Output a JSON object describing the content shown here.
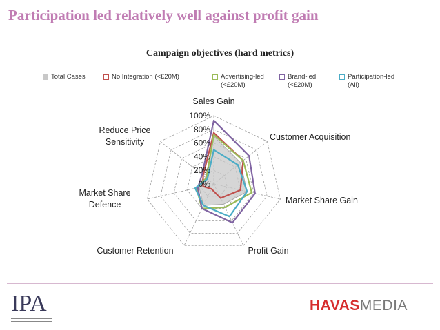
{
  "slide": {
    "title": "Participation led relatively well against  profit gain"
  },
  "chart_data": {
    "type": "radar",
    "title": "Campaign objectives (hard metrics)",
    "axes": [
      "Sales Gain",
      "Customer Acquisition",
      "Market Share Gain",
      "Profit Gain",
      "Customer Retention",
      "Market Share Defence",
      "Reduce Price Sensitivity"
    ],
    "axis_label_lines": [
      [
        "Sales Gain"
      ],
      [
        "Customer Acquisition"
      ],
      [
        "Market Share Gain"
      ],
      [
        "Profit Gain"
      ],
      [
        "Customer Retention"
      ],
      [
        "Market Share",
        "Defence"
      ],
      [
        "Reduce Price",
        "Sensitivity"
      ]
    ],
    "rlim": [
      0,
      100
    ],
    "ticks": [
      "0%",
      "20%",
      "40%",
      "60%",
      "80%",
      "100%"
    ],
    "series": [
      {
        "name": "Total Cases",
        "legend_lines": [
          "Total Cases"
        ],
        "color": "#c8c8c8",
        "fill": true,
        "values": [
          70,
          50,
          50,
          33,
          35,
          22,
          15
        ]
      },
      {
        "name": "No Integration (<£20M)",
        "legend_lines": [
          "No Integration (<£20M)"
        ],
        "color": "#c0504d",
        "fill": false,
        "values": [
          75,
          55,
          40,
          23,
          8,
          16,
          20
        ]
      },
      {
        "name": "Advertising-led (<£20M)",
        "legend_lines": [
          "Advertising-led",
          "(<£20M)"
        ],
        "color": "#9bbb59",
        "fill": false,
        "values": [
          72,
          55,
          57,
          38,
          40,
          26,
          14
        ]
      },
      {
        "name": "Brand-led (<£20M)",
        "legend_lines": [
          "Brand-led",
          "(<£20M)"
        ],
        "color": "#8064a2",
        "fill": false,
        "values": [
          93,
          66,
          62,
          63,
          40,
          24,
          22
        ]
      },
      {
        "name": "Participation-led (All)",
        "legend_lines": [
          "Participation-led",
          "(All)"
        ],
        "color": "#4bacc6",
        "fill": false,
        "values": [
          50,
          45,
          50,
          53,
          35,
          28,
          12
        ]
      }
    ]
  },
  "footer": {
    "left_logo": "IPA",
    "right_logo_part1": "HAVAS",
    "right_logo_part2": "MEDIA"
  }
}
